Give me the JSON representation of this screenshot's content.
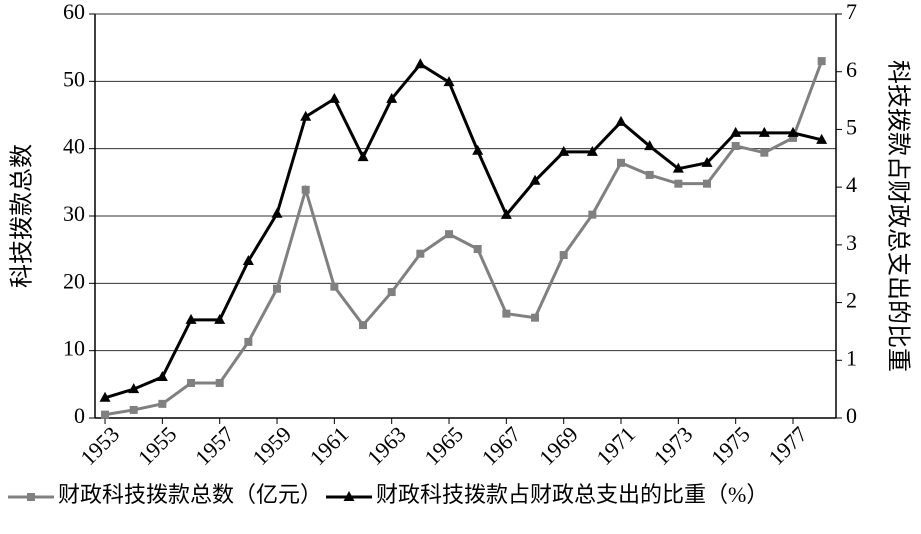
{
  "chart_data": {
    "type": "line",
    "y_label": "科技拨款总数",
    "y2_label": "科技拨款占财政总支出的比重",
    "x": [
      1953,
      1954,
      1955,
      1956,
      1957,
      1958,
      1959,
      1960,
      1961,
      1962,
      1963,
      1964,
      1965,
      1966,
      1967,
      1968,
      1969,
      1970,
      1971,
      1972,
      1973,
      1974,
      1975,
      1976,
      1977,
      1978
    ],
    "xlim": [
      1952.65,
      1978.5
    ],
    "xticks": [
      1953,
      1955,
      1957,
      1959,
      1961,
      1963,
      1965,
      1967,
      1969,
      1971,
      1973,
      1975,
      1977
    ],
    "ylim": [
      0,
      60
    ],
    "yticks": [
      0,
      10,
      20,
      30,
      40,
      50,
      60
    ],
    "y2lim": [
      0,
      7
    ],
    "y2ticks": [
      0,
      1,
      2,
      3,
      4,
      5,
      6,
      7
    ],
    "grid": true,
    "legend": "bottom",
    "series": [
      {
        "name": "财政科技拨款总数（亿元）",
        "color": "#808080",
        "marker": "square",
        "values": [
          0.5,
          1.2,
          2.1,
          5.2,
          5.2,
          11.3,
          19.2,
          33.9,
          19.5,
          13.8,
          18.7,
          24.4,
          27.3,
          25.1,
          15.5,
          14.9,
          24.2,
          30.2,
          37.9,
          36.1,
          34.8,
          34.8,
          40.4,
          39.4,
          41.6,
          53.0
        ]
      },
      {
        "name": "财政科技拨款占财政总支出的比重（%）",
        "color": "#000000",
        "marker": "triangle",
        "axis": "y2",
        "values": [
          0.35,
          0.5,
          0.71,
          1.7,
          1.7,
          2.72,
          3.54,
          5.22,
          5.53,
          4.52,
          5.53,
          6.13,
          5.82,
          4.63,
          3.52,
          4.11,
          4.61,
          4.61,
          5.13,
          4.71,
          4.32,
          4.42,
          4.94,
          4.94,
          4.94,
          4.82
        ]
      }
    ]
  }
}
